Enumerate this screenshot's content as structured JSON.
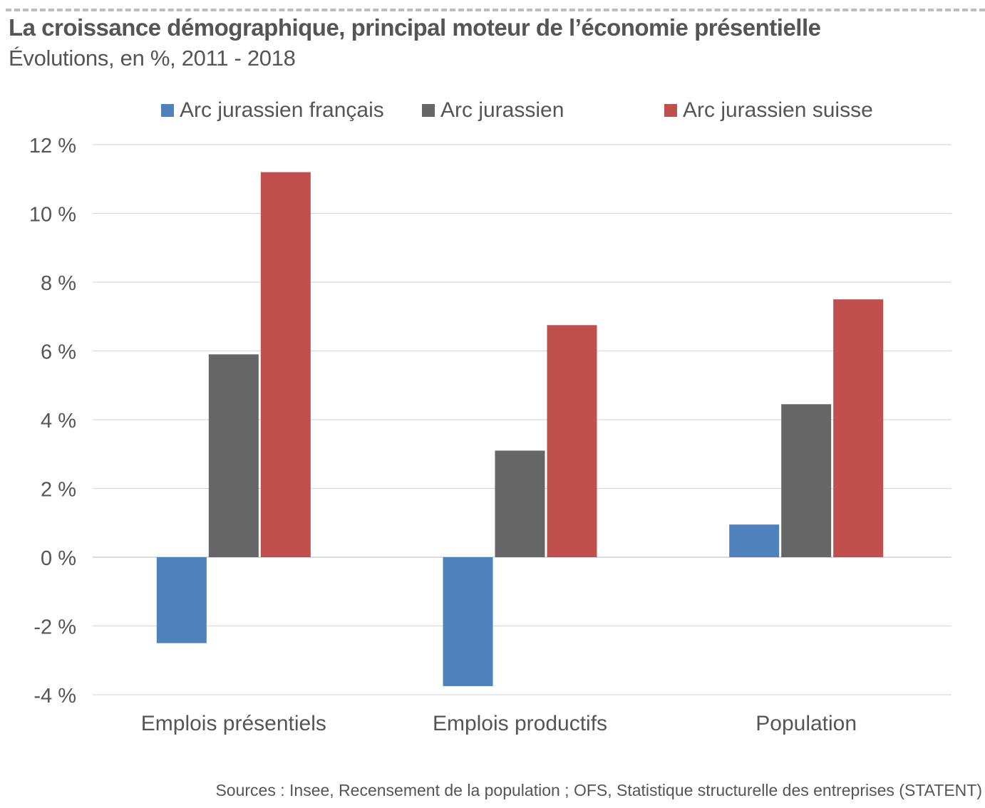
{
  "header": {
    "title": "La croissance démographique, principal moteur de l’économie présentielle",
    "subtitle": "Évolutions, en %, 2011 - 2018"
  },
  "footer": {
    "source": "Sources : Insee, Recensement de la population ; OFS, Statistique structurelle des entreprises (STATENT)"
  },
  "chart_data": {
    "type": "bar",
    "title": "La croissance démographique, principal moteur de l’économie présentielle",
    "subtitle": "Évolutions, en %, 2011 - 2018",
    "xlabel": "",
    "ylabel": "",
    "categories": [
      "Emplois présentiels",
      "Emplois productifs",
      "Population"
    ],
    "series": [
      {
        "name": "Arc jurassien français",
        "color": "#4f81bd",
        "values": [
          -2.5,
          -3.75,
          0.95
        ]
      },
      {
        "name": "Arc jurassien",
        "color": "#666666",
        "values": [
          5.9,
          3.1,
          4.45
        ]
      },
      {
        "name": "Arc jurassien suisse",
        "color": "#c0504d",
        "values": [
          11.2,
          6.75,
          7.5
        ]
      }
    ],
    "ylim": [
      -4,
      12
    ],
    "yticks": [
      12,
      10,
      8,
      6,
      4,
      2,
      0,
      -2,
      -4
    ],
    "ytick_labels": [
      "12 %",
      "10 %",
      "8 %",
      "6 %",
      "4 %",
      "2 %",
      "0 %",
      "-2 %",
      "-4 %"
    ],
    "grid": true,
    "legend_position": "top"
  }
}
